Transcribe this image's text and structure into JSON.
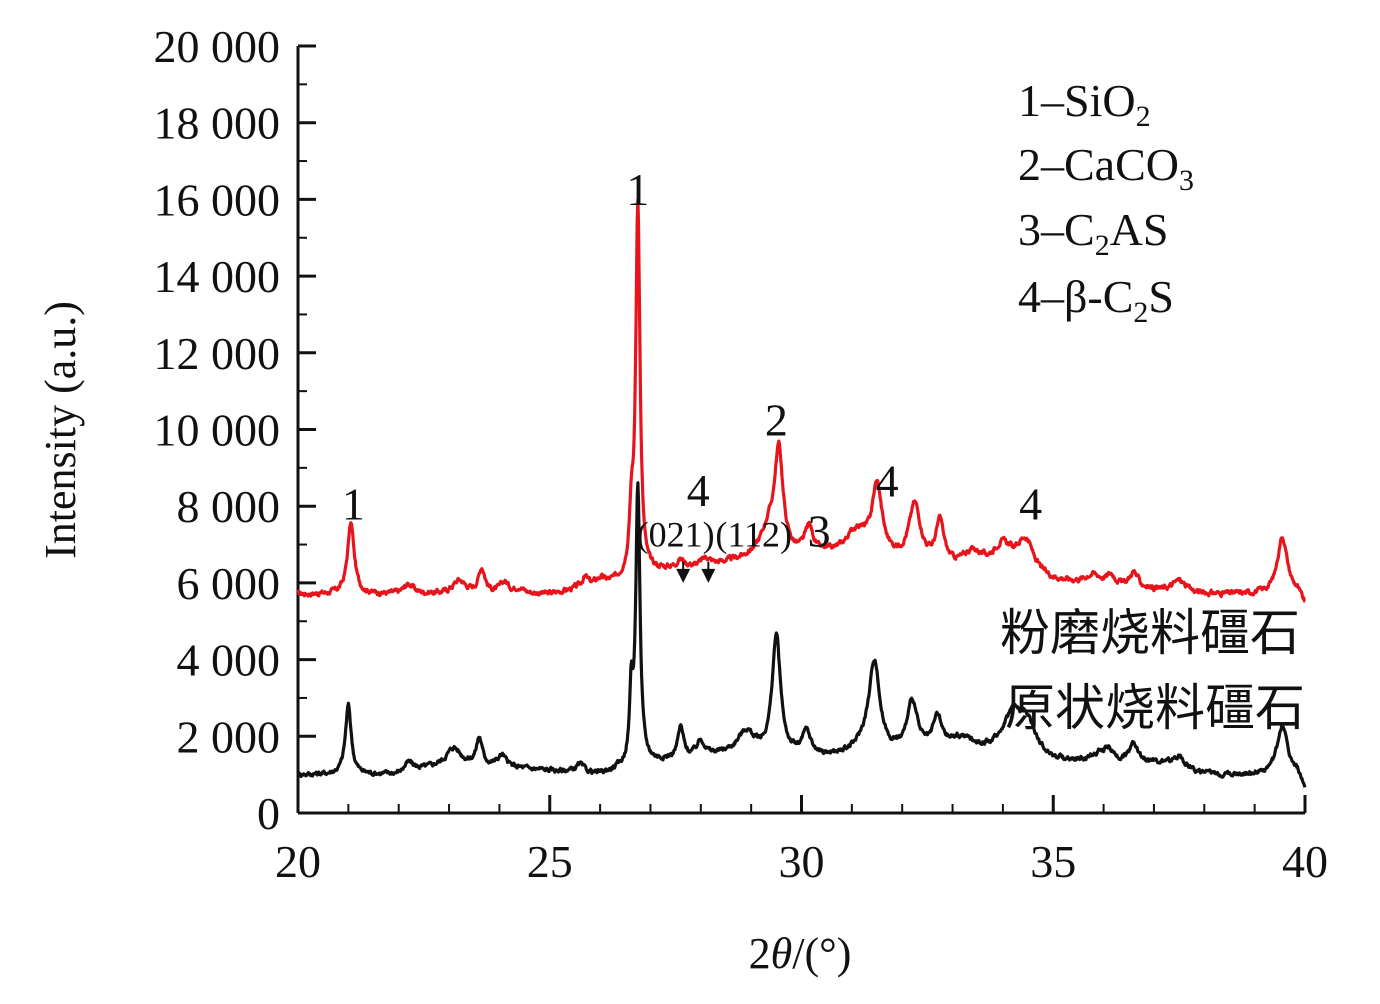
{
  "chart_data": {
    "type": "line",
    "xlabel_parts": {
      "num": "2",
      "theta": "θ",
      "rest": "/(°)"
    },
    "ylabel": "Intensity (a.u.)",
    "xlim": [
      20,
      40
    ],
    "ylim": [
      0,
      20000
    ],
    "x_ticks": [
      "20",
      "25",
      "30",
      "35",
      "40"
    ],
    "y_ticks": [
      "0",
      "2 000",
      "4 000",
      "6 000",
      "8 000",
      "10 000",
      "12 000",
      "14 000",
      "16 000",
      "18 000",
      "20 000"
    ],
    "legend": [
      {
        "prefix": "1–SiO",
        "sub": "2",
        "suffix": ""
      },
      {
        "prefix": "2–CaCO",
        "sub": "3",
        "suffix": ""
      },
      {
        "prefix": "3–C",
        "sub": "2",
        "suffix": "AS"
      },
      {
        "prefix": "4–β-C",
        "sub": "2",
        "suffix": "S"
      }
    ],
    "series": [
      {
        "name": "粉磨烧料礓石",
        "color": "#e8141b",
        "baseline": 5700,
        "noise": 130,
        "background": [
          [
            20,
            0
          ],
          [
            25,
            0
          ],
          [
            26.3,
            300
          ],
          [
            27.2,
            600
          ],
          [
            28,
            700
          ],
          [
            29,
            900
          ],
          [
            31,
            1000
          ],
          [
            33,
            600
          ],
          [
            35,
            300
          ],
          [
            38,
            0
          ],
          [
            40,
            0
          ]
        ],
        "peaks": [
          [
            21.05,
            1850,
            0.08
          ],
          [
            22.2,
            250,
            0.12
          ],
          [
            23.2,
            350,
            0.15
          ],
          [
            23.65,
            650,
            0.08
          ],
          [
            24.1,
            300,
            0.1
          ],
          [
            24.4,
            150,
            0.1
          ],
          [
            25.7,
            250,
            0.08
          ],
          [
            26.0,
            150,
            0.1
          ],
          [
            26.62,
            1400,
            0.05
          ],
          [
            26.75,
            9700,
            0.05
          ],
          [
            27.6,
            200,
            0.1
          ],
          [
            28.1,
            200,
            0.1
          ],
          [
            29.35,
            700,
            0.2
          ],
          [
            29.55,
            2600,
            0.1
          ],
          [
            30.15,
            700,
            0.1
          ],
          [
            31.1,
            600,
            0.25
          ],
          [
            31.5,
            1800,
            0.12
          ],
          [
            32.25,
            1500,
            0.14
          ],
          [
            32.75,
            1100,
            0.1
          ],
          [
            33.4,
            450,
            0.25
          ],
          [
            34.0,
            700,
            0.25
          ],
          [
            34.45,
            900,
            0.2
          ],
          [
            35.8,
            250,
            0.2
          ],
          [
            36.15,
            250,
            0.1
          ],
          [
            36.6,
            400,
            0.1
          ],
          [
            37.5,
            300,
            0.15
          ],
          [
            39.55,
            1500,
            0.12
          ]
        ],
        "end_drop": 100
      },
      {
        "name": "原状烧料礓石",
        "color": "#111111",
        "baseline": 1000,
        "noise": 120,
        "background": [
          [
            20,
            0
          ],
          [
            22,
            0
          ],
          [
            23,
            300
          ],
          [
            24,
            200
          ],
          [
            26,
            0
          ],
          [
            27,
            300
          ],
          [
            28.5,
            500
          ],
          [
            31,
            400
          ],
          [
            33,
            600
          ],
          [
            35,
            300
          ],
          [
            37,
            300
          ],
          [
            38,
            0
          ],
          [
            40,
            0
          ]
        ],
        "peaks": [
          [
            21.0,
            1800,
            0.07
          ],
          [
            22.2,
            250,
            0.12
          ],
          [
            23.1,
            400,
            0.15
          ],
          [
            23.6,
            700,
            0.07
          ],
          [
            24.05,
            300,
            0.1
          ],
          [
            25.6,
            200,
            0.1
          ],
          [
            26.62,
            1800,
            0.04
          ],
          [
            26.75,
            7200,
            0.05
          ],
          [
            27.6,
            800,
            0.07
          ],
          [
            28.0,
            400,
            0.1
          ],
          [
            28.9,
            600,
            0.2
          ],
          [
            29.5,
            3100,
            0.1
          ],
          [
            30.1,
            600,
            0.1
          ],
          [
            31.45,
            2200,
            0.12
          ],
          [
            31.3,
            400,
            0.3
          ],
          [
            32.2,
            1300,
            0.12
          ],
          [
            32.7,
            800,
            0.1
          ],
          [
            33.2,
            300,
            0.3
          ],
          [
            34.2,
            1100,
            0.25
          ],
          [
            34.5,
            700,
            0.2
          ],
          [
            35.9,
            200,
            0.15
          ],
          [
            36.1,
            300,
            0.1
          ],
          [
            36.6,
            500,
            0.1
          ],
          [
            37.5,
            300,
            0.15
          ],
          [
            39.55,
            1300,
            0.12
          ]
        ],
        "end_drop": 150
      }
    ],
    "peak_labels": [
      {
        "text": "1",
        "x": 21.1,
        "y": 7650
      },
      {
        "text": "1",
        "x": 26.75,
        "y": 15850
      },
      {
        "text": "4",
        "x": 27.95,
        "y": 8000
      },
      {
        "text": "2",
        "x": 29.5,
        "y": 9850
      },
      {
        "text": "3",
        "x": 30.35,
        "y": 6950
      },
      {
        "text": "4",
        "x": 31.7,
        "y": 8250
      },
      {
        "text": "4",
        "x": 34.55,
        "y": 7650
      }
    ],
    "plane_labels": [
      {
        "text": "(021)",
        "x": 27.5,
        "y": 6950
      },
      {
        "text": "(112)",
        "x": 29.05,
        "y": 6950
      }
    ],
    "arrows": [
      {
        "x": 27.65,
        "y1": 6550,
        "y2": 6000
      },
      {
        "x": 28.15,
        "y1": 6550,
        "y2": 6000
      }
    ]
  }
}
